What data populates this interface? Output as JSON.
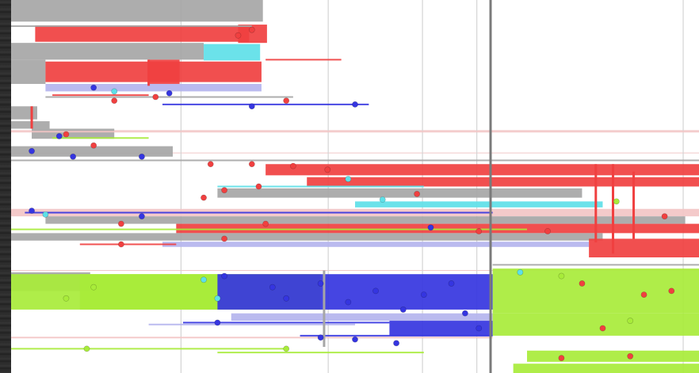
{
  "chart_data": {
    "type": "timeline",
    "title": "",
    "xlabel": "",
    "ylabel": "",
    "grid": true,
    "x_range": [
      0,
      1
    ],
    "y_range": [
      0,
      1
    ],
    "cursor_x": 0.697,
    "colors": {
      "gray": "#a6a6a6",
      "red": "#f04040",
      "cyan": "#5ee0e8",
      "blue": "#3535e0",
      "green": "#a8ec3a",
      "lavender": "#b4b4ee",
      "pink": "#f3c6c6",
      "grid": "#d4d4d4",
      "cursor": "#7a7a7a",
      "background": "#ffffff"
    },
    "gridlines_x": [
      0.247,
      0.461,
      0.598,
      0.677,
      0.697,
      0.977
    ],
    "gridlines_y": [
      0.35,
      0.41,
      0.725
    ],
    "bands": [
      {
        "color": "gray",
        "x0": 0.0,
        "x1": 0.366,
        "y0": 0.0,
        "y1": 0.058
      },
      {
        "color": "red",
        "x0": 0.035,
        "x1": 0.346,
        "y0": 0.068,
        "y1": 0.112
      },
      {
        "color": "red",
        "x0": 0.33,
        "x1": 0.372,
        "y0": 0.066,
        "y1": 0.115
      },
      {
        "color": "gray",
        "x0": 0.0,
        "x1": 0.28,
        "y0": 0.115,
        "y1": 0.16
      },
      {
        "color": "cyan",
        "x0": 0.28,
        "x1": 0.362,
        "y0": 0.118,
        "y1": 0.162
      },
      {
        "color": "gray",
        "x0": 0.0,
        "x1": 0.05,
        "y0": 0.16,
        "y1": 0.225
      },
      {
        "color": "red",
        "x0": 0.05,
        "x1": 0.364,
        "y0": 0.165,
        "y1": 0.22
      },
      {
        "color": "red",
        "x0": 0.2,
        "x1": 0.245,
        "y0": 0.16,
        "y1": 0.225
      },
      {
        "color": "lavender",
        "x0": 0.05,
        "x1": 0.364,
        "y0": 0.225,
        "y1": 0.245
      },
      {
        "color": "gray",
        "x0": 0.0,
        "x1": 0.038,
        "y0": 0.285,
        "y1": 0.32
      },
      {
        "color": "gray",
        "x0": 0.0,
        "x1": 0.056,
        "y0": 0.325,
        "y1": 0.345
      },
      {
        "color": "gray",
        "x0": 0.03,
        "x1": 0.15,
        "y0": 0.345,
        "y1": 0.372
      },
      {
        "color": "gray",
        "x0": 0.0,
        "x1": 0.235,
        "y0": 0.392,
        "y1": 0.42
      },
      {
        "color": "red",
        "x0": 0.37,
        "x1": 1.0,
        "y0": 0.44,
        "y1": 0.47
      },
      {
        "color": "red",
        "x0": 0.43,
        "x1": 1.0,
        "y0": 0.475,
        "y1": 0.5
      },
      {
        "color": "gray",
        "x0": 0.3,
        "x1": 0.83,
        "y0": 0.505,
        "y1": 0.53
      },
      {
        "color": "cyan",
        "x0": 0.5,
        "x1": 0.86,
        "y0": 0.54,
        "y1": 0.556
      },
      {
        "color": "pink",
        "x0": 0.0,
        "x1": 1.0,
        "y0": 0.56,
        "y1": 0.58
      },
      {
        "color": "gray",
        "x0": 0.05,
        "x1": 0.98,
        "y0": 0.58,
        "y1": 0.6
      },
      {
        "color": "red",
        "x0": 0.24,
        "x1": 1.0,
        "y0": 0.6,
        "y1": 0.625
      },
      {
        "color": "gray",
        "x0": 0.0,
        "x1": 0.86,
        "y0": 0.625,
        "y1": 0.645
      },
      {
        "color": "lavender",
        "x0": 0.22,
        "x1": 0.84,
        "y0": 0.648,
        "y1": 0.662
      },
      {
        "color": "red",
        "x0": 0.84,
        "x1": 1.0,
        "y0": 0.64,
        "y1": 0.69
      },
      {
        "color": "gray",
        "x0": 0.0,
        "x1": 0.115,
        "y0": 0.73,
        "y1": 0.78
      },
      {
        "color": "green",
        "x0": 0.0,
        "x1": 0.3,
        "y0": 0.735,
        "y1": 0.83
      },
      {
        "color": "green",
        "x0": 0.1,
        "x1": 0.45,
        "y0": 0.735,
        "y1": 0.83
      },
      {
        "color": "blue",
        "x0": 0.3,
        "x1": 0.7,
        "y0": 0.735,
        "y1": 0.83
      },
      {
        "color": "green",
        "x0": 0.7,
        "x1": 1.0,
        "y0": 0.72,
        "y1": 0.84
      },
      {
        "color": "lavender",
        "x0": 0.32,
        "x1": 0.7,
        "y0": 0.84,
        "y1": 0.86
      },
      {
        "color": "blue",
        "x0": 0.55,
        "x1": 0.7,
        "y0": 0.86,
        "y1": 0.9
      },
      {
        "color": "green",
        "x0": 0.7,
        "x1": 1.0,
        "y0": 0.84,
        "y1": 0.9
      },
      {
        "color": "green",
        "x0": 0.75,
        "x1": 1.0,
        "y0": 0.94,
        "y1": 0.97
      },
      {
        "color": "green",
        "x0": 0.73,
        "x1": 1.0,
        "y0": 0.975,
        "y1": 1.0
      }
    ],
    "lines": [
      {
        "color": "gray",
        "x0": 0.0,
        "x1": 0.35,
        "y": 0.07
      },
      {
        "color": "red",
        "x0": 0.37,
        "x1": 0.48,
        "y": 0.16
      },
      {
        "color": "blue",
        "x0": 0.22,
        "x1": 0.52,
        "y": 0.28
      },
      {
        "color": "gray",
        "x0": 0.05,
        "x1": 0.41,
        "y": 0.26
      },
      {
        "color": "red",
        "x0": 0.06,
        "x1": 0.2,
        "y": 0.255
      },
      {
        "color": "pink",
        "x0": 0.0,
        "x1": 1.0,
        "y": 0.353
      },
      {
        "color": "green",
        "x0": 0.06,
        "x1": 0.2,
        "y": 0.37
      },
      {
        "color": "gray",
        "x0": 0.0,
        "x1": 1.0,
        "y": 0.43
      },
      {
        "color": "cyan",
        "x0": 0.3,
        "x1": 0.6,
        "y": 0.5
      },
      {
        "color": "blue",
        "x0": 0.02,
        "x1": 0.7,
        "y": 0.57
      },
      {
        "color": "green",
        "x0": 0.0,
        "x1": 0.75,
        "y": 0.615
      },
      {
        "color": "red",
        "x0": 0.1,
        "x1": 0.24,
        "y": 0.655
      },
      {
        "color": "gray",
        "x0": 0.7,
        "x1": 1.0,
        "y": 0.71
      },
      {
        "color": "lavender",
        "x0": 0.2,
        "x1": 0.5,
        "y": 0.87
      },
      {
        "color": "blue",
        "x0": 0.25,
        "x1": 0.55,
        "y": 0.865
      },
      {
        "color": "pink",
        "x0": 0.0,
        "x1": 0.7,
        "y": 0.905
      },
      {
        "color": "blue",
        "x0": 0.42,
        "x1": 0.7,
        "y": 0.9
      },
      {
        "color": "green",
        "x0": 0.0,
        "x1": 0.4,
        "y": 0.935
      },
      {
        "color": "green",
        "x0": 0.3,
        "x1": 0.6,
        "y": 0.945
      }
    ],
    "vertical_markers": [
      {
        "color": "red",
        "x": 0.85,
        "y0": 0.44,
        "y1": 0.65
      },
      {
        "color": "red",
        "x": 0.875,
        "y0": 0.44,
        "y1": 0.68
      },
      {
        "color": "red",
        "x": 0.905,
        "y0": 0.46,
        "y1": 0.64
      },
      {
        "color": "red",
        "x": 0.2,
        "y0": 0.16,
        "y1": 0.23
      },
      {
        "color": "red",
        "x": 0.03,
        "y0": 0.285,
        "y1": 0.345
      },
      {
        "color": "gray",
        "x": 0.455,
        "y0": 0.725,
        "y1": 0.93
      }
    ],
    "markers": [
      {
        "color": "red",
        "x": 0.35,
        "y": 0.08
      },
      {
        "color": "red",
        "x": 0.33,
        "y": 0.095
      },
      {
        "color": "blue",
        "x": 0.12,
        "y": 0.235
      },
      {
        "color": "blue",
        "x": 0.23,
        "y": 0.25
      },
      {
        "color": "red",
        "x": 0.15,
        "y": 0.27
      },
      {
        "color": "red",
        "x": 0.21,
        "y": 0.26
      },
      {
        "color": "cyan",
        "x": 0.15,
        "y": 0.245
      },
      {
        "color": "blue",
        "x": 0.35,
        "y": 0.285
      },
      {
        "color": "red",
        "x": 0.4,
        "y": 0.27
      },
      {
        "color": "blue",
        "x": 0.5,
        "y": 0.28
      },
      {
        "color": "red",
        "x": 0.08,
        "y": 0.36
      },
      {
        "color": "blue",
        "x": 0.07,
        "y": 0.365
      },
      {
        "color": "red",
        "x": 0.12,
        "y": 0.39
      },
      {
        "color": "blue",
        "x": 0.03,
        "y": 0.405
      },
      {
        "color": "blue",
        "x": 0.09,
        "y": 0.42
      },
      {
        "color": "blue",
        "x": 0.19,
        "y": 0.42
      },
      {
        "color": "red",
        "x": 0.29,
        "y": 0.44
      },
      {
        "color": "red",
        "x": 0.35,
        "y": 0.44
      },
      {
        "color": "red",
        "x": 0.41,
        "y": 0.445
      },
      {
        "color": "red",
        "x": 0.46,
        "y": 0.455
      },
      {
        "color": "red",
        "x": 0.31,
        "y": 0.51
      },
      {
        "color": "red",
        "x": 0.36,
        "y": 0.5
      },
      {
        "color": "cyan",
        "x": 0.49,
        "y": 0.48
      },
      {
        "color": "red",
        "x": 0.28,
        "y": 0.53
      },
      {
        "color": "cyan",
        "x": 0.54,
        "y": 0.535
      },
      {
        "color": "red",
        "x": 0.59,
        "y": 0.52
      },
      {
        "color": "blue",
        "x": 0.03,
        "y": 0.565
      },
      {
        "color": "cyan",
        "x": 0.05,
        "y": 0.575
      },
      {
        "color": "red",
        "x": 0.16,
        "y": 0.6
      },
      {
        "color": "blue",
        "x": 0.19,
        "y": 0.58
      },
      {
        "color": "red",
        "x": 0.37,
        "y": 0.6
      },
      {
        "color": "blue",
        "x": 0.61,
        "y": 0.61
      },
      {
        "color": "red",
        "x": 0.68,
        "y": 0.62
      },
      {
        "color": "red",
        "x": 0.78,
        "y": 0.62
      },
      {
        "color": "green",
        "x": 0.88,
        "y": 0.54
      },
      {
        "color": "red",
        "x": 0.95,
        "y": 0.58
      },
      {
        "color": "red",
        "x": 0.16,
        "y": 0.655
      },
      {
        "color": "red",
        "x": 0.31,
        "y": 0.64
      },
      {
        "color": "cyan",
        "x": 0.74,
        "y": 0.73
      },
      {
        "color": "blue",
        "x": 0.31,
        "y": 0.74
      },
      {
        "color": "blue",
        "x": 0.38,
        "y": 0.77
      },
      {
        "color": "blue",
        "x": 0.4,
        "y": 0.8
      },
      {
        "color": "blue",
        "x": 0.45,
        "y": 0.76
      },
      {
        "color": "blue",
        "x": 0.49,
        "y": 0.81
      },
      {
        "color": "blue",
        "x": 0.53,
        "y": 0.78
      },
      {
        "color": "blue",
        "x": 0.57,
        "y": 0.83
      },
      {
        "color": "blue",
        "x": 0.6,
        "y": 0.79
      },
      {
        "color": "blue",
        "x": 0.64,
        "y": 0.76
      },
      {
        "color": "blue",
        "x": 0.66,
        "y": 0.84
      },
      {
        "color": "blue",
        "x": 0.68,
        "y": 0.88
      },
      {
        "color": "cyan",
        "x": 0.28,
        "y": 0.75
      },
      {
        "color": "cyan",
        "x": 0.3,
        "y": 0.8
      },
      {
        "color": "green",
        "x": 0.12,
        "y": 0.77
      },
      {
        "color": "green",
        "x": 0.08,
        "y": 0.8
      },
      {
        "color": "red",
        "x": 0.83,
        "y": 0.76
      },
      {
        "color": "red",
        "x": 0.92,
        "y": 0.79
      },
      {
        "color": "red",
        "x": 0.96,
        "y": 0.78
      },
      {
        "color": "red",
        "x": 0.86,
        "y": 0.88
      },
      {
        "color": "green",
        "x": 0.8,
        "y": 0.74
      },
      {
        "color": "green",
        "x": 0.9,
        "y": 0.86
      },
      {
        "color": "blue",
        "x": 0.3,
        "y": 0.865
      },
      {
        "color": "blue",
        "x": 0.45,
        "y": 0.905
      },
      {
        "color": "blue",
        "x": 0.5,
        "y": 0.91
      },
      {
        "color": "blue",
        "x": 0.56,
        "y": 0.92
      },
      {
        "color": "green",
        "x": 0.11,
        "y": 0.935
      },
      {
        "color": "green",
        "x": 0.4,
        "y": 0.935
      },
      {
        "color": "red",
        "x": 0.8,
        "y": 0.96
      },
      {
        "color": "red",
        "x": 0.9,
        "y": 0.955
      }
    ]
  }
}
